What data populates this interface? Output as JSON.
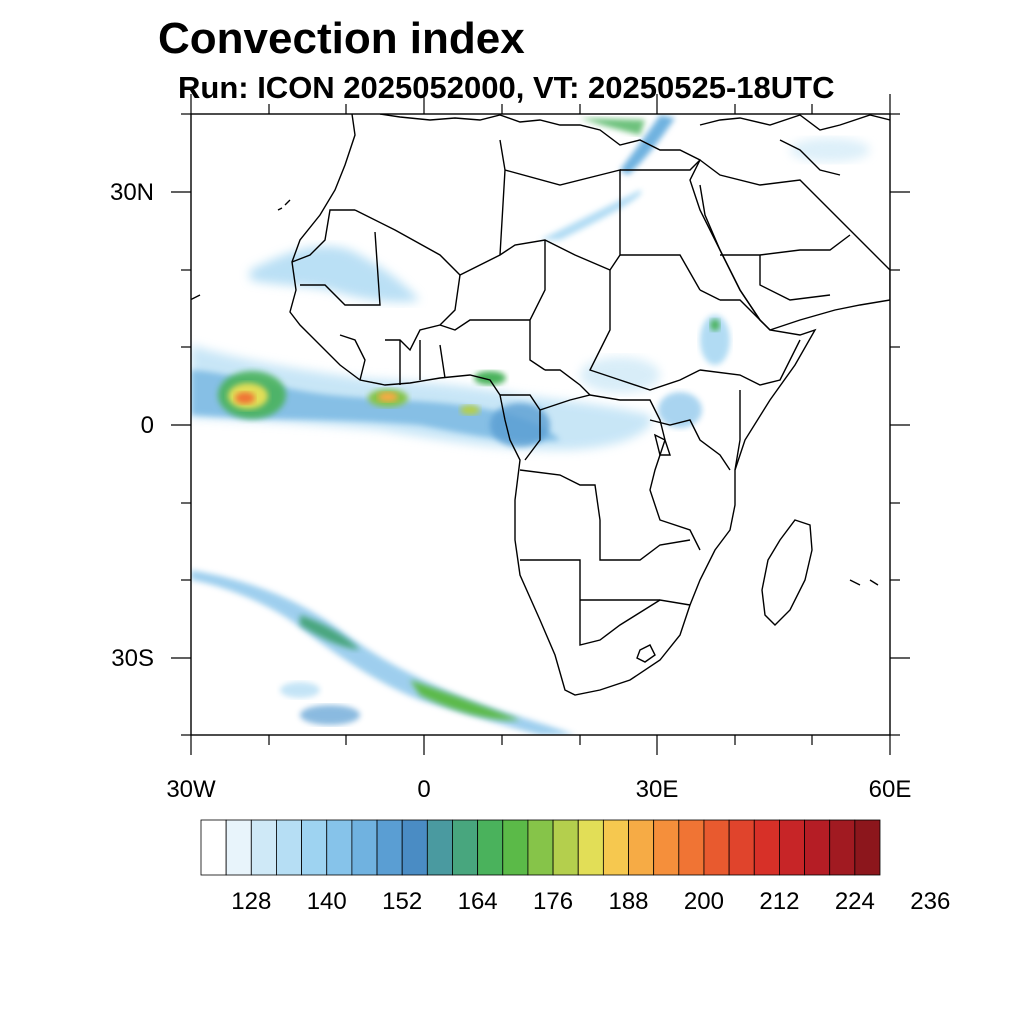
{
  "title": "Convection index",
  "subtitle": "Run: ICON 2025052000,  VT: 20250525-18UTC",
  "axes": {
    "lat_labels": [
      "30N",
      "0",
      "30S"
    ],
    "lon_labels": [
      "30W",
      "0",
      "30E",
      "60E"
    ]
  },
  "colorbar": {
    "labels": [
      "128",
      "140",
      "152",
      "164",
      "176",
      "188",
      "200",
      "212",
      "224",
      "236"
    ],
    "colors": [
      "#ffffff",
      "#e8f4fb",
      "#cfe9f7",
      "#b6def4",
      "#9ed3f1",
      "#86c3ea",
      "#70b2e0",
      "#5a9ed3",
      "#4a8cc4",
      "#4a9aa0",
      "#48a67e",
      "#4ab25c",
      "#5bba48",
      "#86c449",
      "#b4cf4d",
      "#e2de57",
      "#f6c84f",
      "#f6ab45",
      "#f58f3b",
      "#f07434",
      "#e85a2f",
      "#e0442c",
      "#d73028",
      "#c72527",
      "#b51d25",
      "#a11a21",
      "#8c161c"
    ]
  },
  "map": {
    "land_color": "#ffffff",
    "border_color": "#000000",
    "extent": {
      "lon": [
        -30,
        60
      ],
      "lat": [
        -40,
        40
      ]
    }
  }
}
